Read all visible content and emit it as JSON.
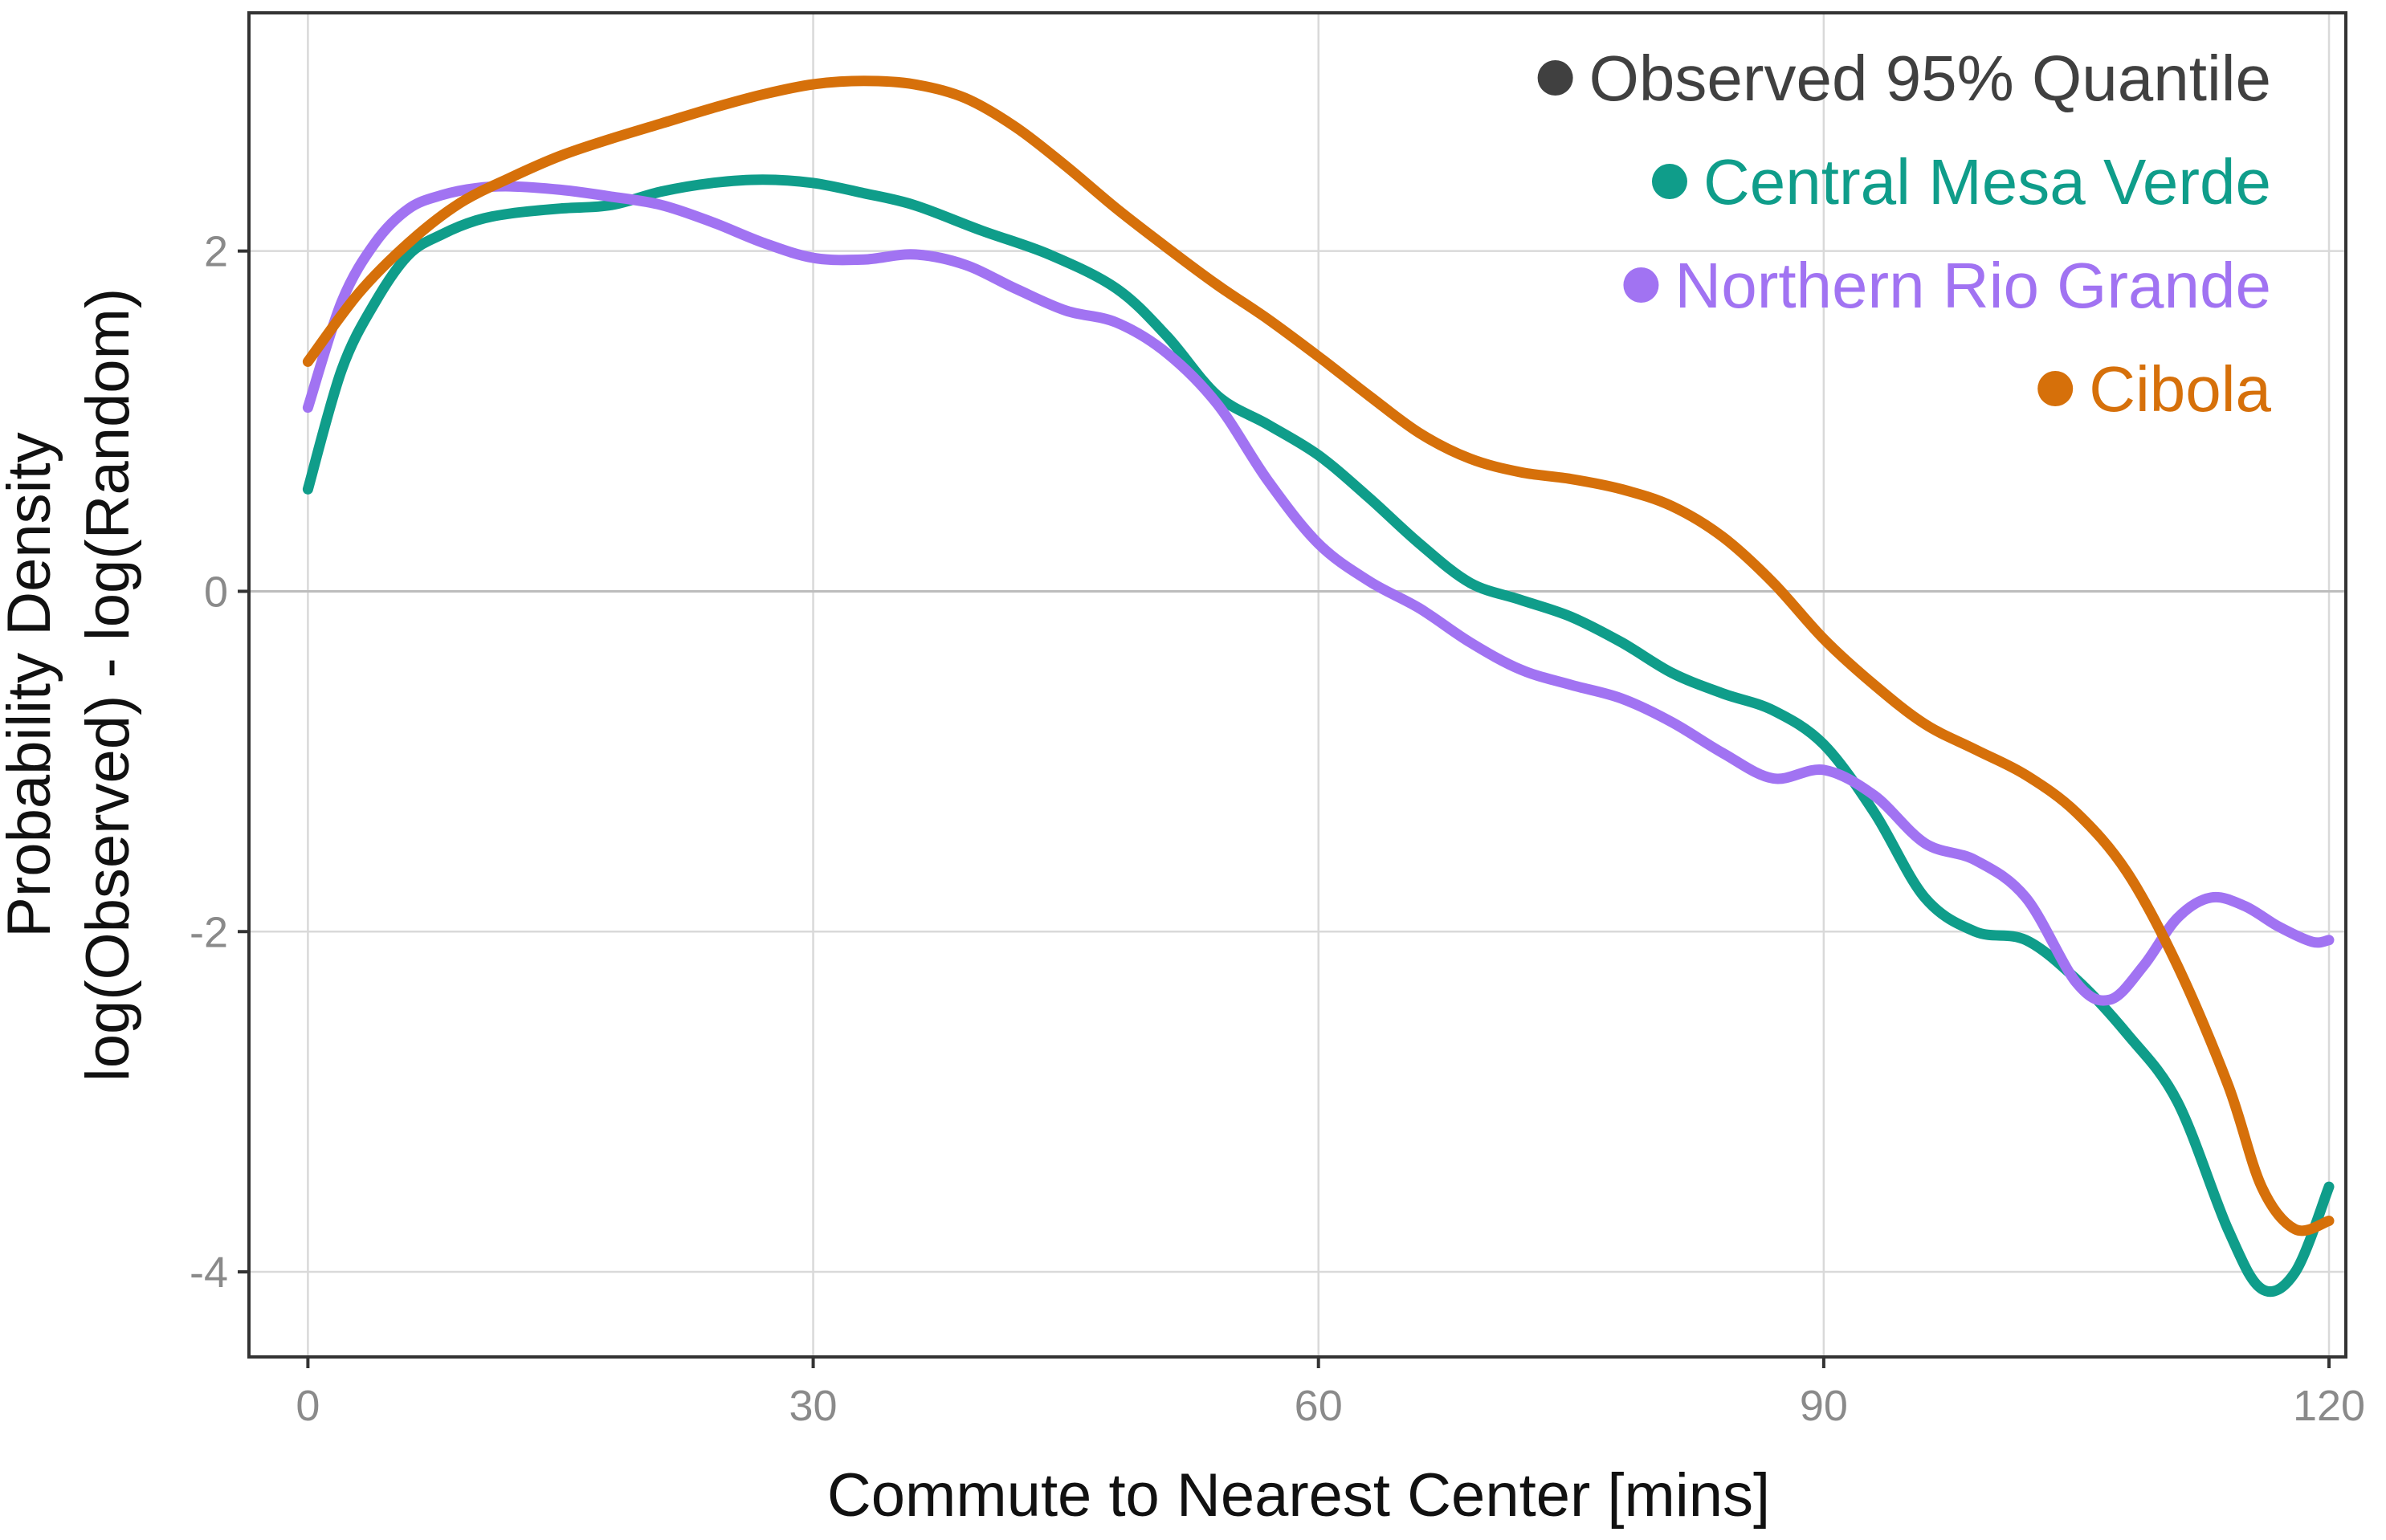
{
  "chart_data": {
    "type": "line",
    "title": "",
    "xlabel": "Commute to Nearest Center [mins]",
    "ylabel_line1": "Probability Density",
    "ylabel_line2": "log(Observed) - log(Random)",
    "xlim": [
      -3.5,
      121
    ],
    "ylim": [
      -4.5,
      3.4
    ],
    "xticks": [
      0,
      30,
      60,
      90,
      120
    ],
    "xtick_labels": [
      "0",
      "30",
      "60",
      "90",
      "120"
    ],
    "yticks": [
      -4,
      -2,
      0,
      2
    ],
    "ytick_labels": [
      "-4",
      "-2",
      "0",
      "2"
    ],
    "grid": true,
    "legend_position": "top-right",
    "legend": [
      {
        "label": "Observed 95% Quantile",
        "color": "#404040"
      },
      {
        "label": "Central Mesa Verde",
        "color": "#0f9d8a"
      },
      {
        "label": "Northern Rio Grande",
        "color": "#a173f2"
      },
      {
        "label": "Cibola",
        "color": "#d6700a"
      }
    ],
    "series": [
      {
        "name": "Central Mesa Verde",
        "color": "#0f9d8a",
        "x": [
          0,
          2,
          4,
          6,
          8,
          10,
          12,
          15,
          18,
          21,
          24,
          27,
          30,
          33,
          36,
          40,
          44,
          48,
          51,
          54,
          57,
          60,
          63,
          66,
          69,
          72,
          75,
          78,
          81,
          84,
          87,
          90,
          93,
          96,
          99,
          102,
          105,
          108,
          111,
          114,
          116,
          118,
          120
        ],
        "y": [
          0.6,
          1.3,
          1.7,
          1.98,
          2.1,
          2.18,
          2.22,
          2.25,
          2.27,
          2.35,
          2.4,
          2.42,
          2.4,
          2.34,
          2.27,
          2.12,
          1.98,
          1.78,
          1.5,
          1.15,
          0.98,
          0.8,
          0.55,
          0.28,
          0.05,
          -0.05,
          -0.15,
          -0.3,
          -0.48,
          -0.6,
          -0.7,
          -0.9,
          -1.3,
          -1.8,
          -2.0,
          -2.05,
          -2.28,
          -2.6,
          -3.0,
          -3.75,
          -4.1,
          -4.0,
          -3.5
        ]
      },
      {
        "name": "Northern Rio Grande",
        "color": "#a173f2",
        "x": [
          0,
          2,
          4,
          6,
          8,
          10,
          12,
          15,
          18,
          21,
          24,
          27,
          30,
          33,
          36,
          39,
          42,
          45,
          48,
          51,
          54,
          57,
          60,
          63,
          66,
          69,
          72,
          75,
          78,
          81,
          84,
          87,
          90,
          93,
          96,
          99,
          102,
          105,
          107,
          109,
          111,
          113,
          115,
          117,
          119,
          120
        ],
        "y": [
          1.08,
          1.7,
          2.05,
          2.25,
          2.33,
          2.37,
          2.38,
          2.36,
          2.32,
          2.27,
          2.17,
          2.05,
          1.96,
          1.95,
          1.98,
          1.92,
          1.78,
          1.65,
          1.58,
          1.4,
          1.1,
          0.65,
          0.28,
          0.06,
          -0.1,
          -0.3,
          -0.46,
          -0.55,
          -0.63,
          -0.77,
          -0.95,
          -1.1,
          -1.05,
          -1.2,
          -1.48,
          -1.58,
          -1.8,
          -2.3,
          -2.4,
          -2.2,
          -1.92,
          -1.8,
          -1.85,
          -1.97,
          -2.06,
          -2.05
        ]
      },
      {
        "name": "Cibola",
        "color": "#d6700a",
        "x": [
          0,
          3,
          6,
          9,
          12,
          15,
          18,
          21,
          24,
          27,
          30,
          33,
          36,
          39,
          42,
          45,
          48,
          51,
          54,
          57,
          60,
          63,
          66,
          69,
          72,
          75,
          78,
          81,
          84,
          87,
          90,
          93,
          96,
          99,
          102,
          105,
          108,
          111,
          114,
          116,
          118,
          120
        ],
        "y": [
          1.35,
          1.75,
          2.05,
          2.28,
          2.43,
          2.56,
          2.66,
          2.75,
          2.84,
          2.92,
          2.98,
          3.0,
          2.98,
          2.9,
          2.73,
          2.5,
          2.25,
          2.02,
          1.8,
          1.6,
          1.38,
          1.15,
          0.93,
          0.78,
          0.7,
          0.66,
          0.6,
          0.5,
          0.32,
          0.05,
          -0.28,
          -0.55,
          -0.78,
          -0.93,
          -1.08,
          -1.3,
          -1.65,
          -2.2,
          -2.9,
          -3.5,
          -3.75,
          -3.7
        ]
      }
    ]
  }
}
